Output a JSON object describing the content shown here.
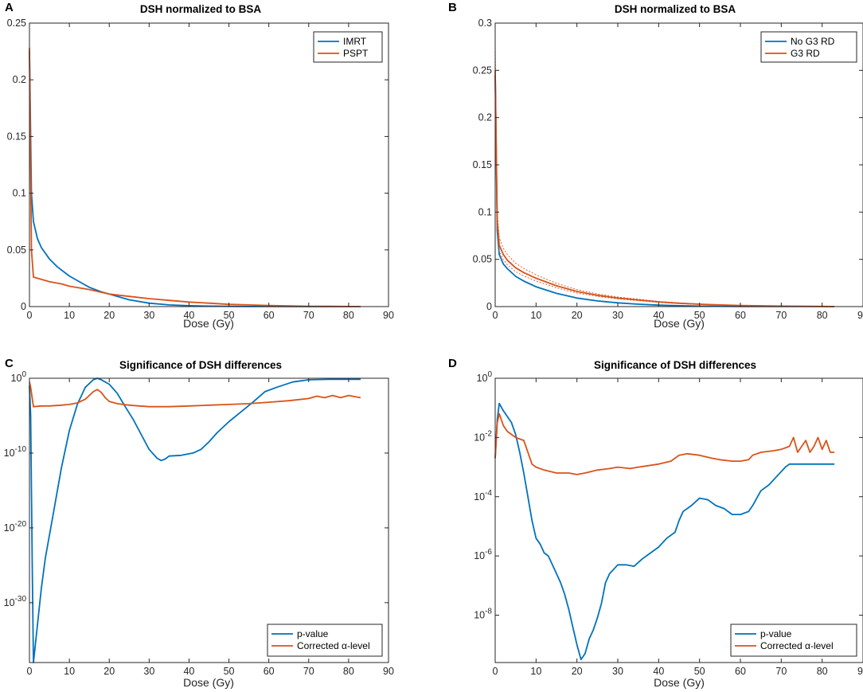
{
  "colors": {
    "blue": "#0072BD",
    "red": "#D95319",
    "axis": "#262626"
  },
  "chart_data": [
    {
      "panel": "A",
      "type": "line",
      "title": "DSH normalized to BSA",
      "xlabel": "Dose (Gy)",
      "ylabel": "",
      "xlim": [
        0,
        90
      ],
      "ylim": [
        0,
        0.25
      ],
      "yscale": "linear",
      "xticks": [
        0,
        10,
        20,
        30,
        40,
        50,
        60,
        70,
        80,
        90
      ],
      "yticks": [
        0,
        0.05,
        0.1,
        0.15,
        0.2,
        0.25
      ],
      "ytick_labels": [
        "0",
        "0.05",
        "0.1",
        "0.15",
        "0.2",
        "0.25"
      ],
      "legend_position": "top-right",
      "series": [
        {
          "name": "IMRT",
          "color": "blue",
          "x": [
            0,
            0.5,
            1,
            2,
            3,
            5,
            7,
            10,
            13,
            15,
            18,
            20,
            25,
            30,
            35,
            40,
            45,
            50,
            55,
            60,
            70,
            80,
            83
          ],
          "y": [
            0.225,
            0.1,
            0.075,
            0.06,
            0.052,
            0.042,
            0.035,
            0.027,
            0.021,
            0.017,
            0.013,
            0.011,
            0.006,
            0.003,
            0.0015,
            0.0008,
            0.0004,
            0.0002,
            0.0001,
            5e-05,
            2e-05,
            1e-05,
            0
          ]
        },
        {
          "name": "PSPT",
          "color": "red",
          "x": [
            0,
            0.5,
            1,
            2,
            5,
            8,
            10,
            15,
            20,
            25,
            30,
            35,
            40,
            45,
            50,
            55,
            60,
            65,
            70,
            75,
            80,
            83
          ],
          "y": [
            0.228,
            0.05,
            0.026,
            0.025,
            0.022,
            0.02,
            0.018,
            0.015,
            0.011,
            0.009,
            0.007,
            0.0055,
            0.004,
            0.003,
            0.002,
            0.0015,
            0.001,
            0.0006,
            0.0003,
            0.0002,
            0.0001,
            0
          ]
        }
      ]
    },
    {
      "panel": "B",
      "type": "line",
      "title": "DSH normalized to BSA",
      "xlabel": "Dose (Gy)",
      "ylabel": "",
      "xlim": [
        0,
        90
      ],
      "ylim": [
        0,
        0.3
      ],
      "yscale": "linear",
      "xticks": [
        0,
        10,
        20,
        30,
        40,
        50,
        60,
        70,
        80,
        90
      ],
      "yticks": [
        0,
        0.05,
        0.1,
        0.15,
        0.2,
        0.25,
        0.3
      ],
      "ytick_labels": [
        "0",
        "0.05",
        "0.1",
        "0.15",
        "0.2",
        "0.25",
        "0.3"
      ],
      "legend_position": "top-right",
      "series": [
        {
          "name": "No G3 RD",
          "color": "blue",
          "x": [
            0,
            0.5,
            1,
            2,
            3,
            5,
            7,
            10,
            15,
            20,
            25,
            30,
            35,
            40,
            45,
            50,
            55,
            60,
            70,
            80,
            83
          ],
          "y": [
            0.245,
            0.08,
            0.055,
            0.045,
            0.04,
            0.032,
            0.027,
            0.021,
            0.014,
            0.009,
            0.006,
            0.004,
            0.0025,
            0.0015,
            0.0009,
            0.0005,
            0.0003,
            0.0002,
            0.0001,
            5e-05,
            0
          ]
        },
        {
          "name": "G3 RD",
          "color": "red",
          "x": [
            0,
            0.5,
            1,
            2,
            3,
            5,
            7,
            10,
            15,
            20,
            25,
            30,
            35,
            40,
            45,
            50,
            55,
            60,
            70,
            80,
            83
          ],
          "y": [
            0.25,
            0.09,
            0.065,
            0.055,
            0.049,
            0.041,
            0.036,
            0.03,
            0.022,
            0.016,
            0.012,
            0.009,
            0.007,
            0.005,
            0.0035,
            0.0025,
            0.0018,
            0.0012,
            0.0005,
            0.0002,
            0
          ]
        }
      ]
    },
    {
      "panel": "C",
      "type": "line",
      "title": "Significance of DSH differences",
      "xlabel": "Dose (Gy)",
      "ylabel": "",
      "xlim": [
        0,
        90
      ],
      "ylim": [
        -38,
        0
      ],
      "yscale": "log",
      "xticks": [
        0,
        10,
        20,
        30,
        40,
        50,
        60,
        70,
        80,
        90
      ],
      "yticks": [
        0,
        -10,
        -20,
        -30
      ],
      "ytick_labels": [
        "10",
        "10",
        "10",
        "10"
      ],
      "ytick_exponents": [
        "0",
        "-10",
        "-20",
        "-30"
      ],
      "legend_position": "bottom-right",
      "series": [
        {
          "name": "p-value",
          "color": "blue",
          "log10_y": true,
          "x": [
            0,
            0.3,
            0.7,
            1,
            2,
            3,
            4,
            6,
            8,
            10,
            12,
            14,
            16,
            17,
            18,
            20,
            22,
            24,
            26,
            28,
            30,
            32,
            33,
            34,
            35,
            38,
            41,
            43,
            45,
            47,
            50,
            53,
            56,
            59,
            62,
            66,
            70,
            75,
            80,
            83
          ],
          "y": [
            -1,
            -5,
            -25,
            -39,
            -33,
            -28,
            -24,
            -18,
            -12,
            -7,
            -3.5,
            -1.2,
            -0.2,
            0,
            -0.2,
            -0.8,
            -2,
            -3.8,
            -5.5,
            -7.5,
            -9.5,
            -10.7,
            -11,
            -10.8,
            -10.4,
            -10.3,
            -10,
            -9.5,
            -8.5,
            -7.3,
            -5.8,
            -4.5,
            -3.2,
            -1.8,
            -1.2,
            -0.5,
            -0.2,
            -0.15,
            -0.15,
            -0.15
          ]
        },
        {
          "name": "Corrected α-level",
          "color": "red",
          "log10_y": true,
          "x": [
            0,
            0.3,
            1,
            3,
            5,
            8,
            10,
            12,
            14,
            15,
            16,
            17,
            18,
            19,
            20,
            22,
            25,
            30,
            35,
            40,
            45,
            50,
            55,
            60,
            65,
            70,
            72,
            74,
            76,
            78,
            80,
            82,
            83
          ],
          "y": [
            -0.5,
            -1.2,
            -3.8,
            -3.7,
            -3.7,
            -3.6,
            -3.5,
            -3.3,
            -2.8,
            -2.3,
            -1.8,
            -1.5,
            -1.9,
            -2.6,
            -3.1,
            -3.4,
            -3.6,
            -3.8,
            -3.8,
            -3.7,
            -3.6,
            -3.5,
            -3.4,
            -3.2,
            -3.0,
            -2.7,
            -2.4,
            -2.6,
            -2.3,
            -2.6,
            -2.3,
            -2.5,
            -2.6
          ]
        }
      ]
    },
    {
      "panel": "D",
      "type": "line",
      "title": "Significance of DSH differences",
      "xlabel": "Dose (Gy)",
      "ylabel": "",
      "xlim": [
        0,
        90
      ],
      "ylim": [
        -9.6,
        0
      ],
      "yscale": "log",
      "xticks": [
        0,
        10,
        20,
        30,
        40,
        50,
        60,
        70,
        80,
        90
      ],
      "yticks": [
        0,
        -2,
        -4,
        -6,
        -8
      ],
      "ytick_labels": [
        "10",
        "10",
        "10",
        "10",
        "10"
      ],
      "ytick_exponents": [
        "0",
        "-2",
        "-4",
        "-6",
        "-8"
      ],
      "legend_position": "bottom-right",
      "series": [
        {
          "name": "p-value",
          "color": "blue",
          "log10_y": true,
          "x": [
            0,
            0.5,
            1,
            2,
            3,
            4,
            5,
            6,
            7,
            8,
            9,
            10,
            11,
            12,
            13,
            14,
            15,
            16,
            17,
            18,
            19,
            20,
            21,
            22,
            23,
            24,
            25,
            26,
            27,
            28,
            30,
            32,
            34,
            36,
            38,
            40,
            42,
            44,
            45,
            46,
            48,
            50,
            52,
            54,
            56,
            58,
            60,
            62,
            63,
            65,
            67,
            69,
            71,
            72,
            75,
            80,
            83
          ],
          "y": [
            -2.7,
            -1.4,
            -0.85,
            -1.1,
            -1.3,
            -1.5,
            -1.9,
            -2.5,
            -3.2,
            -4.0,
            -4.8,
            -5.4,
            -5.6,
            -5.9,
            -6.0,
            -6.3,
            -6.6,
            -6.9,
            -7.3,
            -7.8,
            -8.4,
            -9.0,
            -9.5,
            -9.3,
            -8.8,
            -8.5,
            -8.1,
            -7.6,
            -6.9,
            -6.6,
            -6.3,
            -6.3,
            -6.35,
            -6.1,
            -5.9,
            -5.7,
            -5.4,
            -5.2,
            -4.8,
            -4.5,
            -4.3,
            -4.05,
            -4.1,
            -4.3,
            -4.4,
            -4.6,
            -4.6,
            -4.5,
            -4.3,
            -3.8,
            -3.6,
            -3.3,
            -3.0,
            -2.9,
            -2.9,
            -2.9,
            -2.9
          ]
        },
        {
          "name": "Corrected α-level",
          "color": "red",
          "log10_y": true,
          "x": [
            0,
            0.5,
            1,
            2,
            3,
            5,
            7,
            8,
            9,
            10,
            12,
            15,
            18,
            20,
            22,
            25,
            28,
            30,
            33,
            35,
            40,
            43,
            45,
            47,
            50,
            53,
            55,
            58,
            60,
            62,
            63,
            65,
            68,
            70,
            72,
            73,
            74,
            75,
            76,
            77,
            78,
            79,
            80,
            81,
            82,
            83
          ],
          "y": [
            -2.7,
            -1.5,
            -1.2,
            -1.6,
            -1.8,
            -2.0,
            -2.1,
            -2.5,
            -2.9,
            -3.0,
            -3.1,
            -3.2,
            -3.2,
            -3.25,
            -3.2,
            -3.1,
            -3.05,
            -3.0,
            -3.05,
            -3.0,
            -2.9,
            -2.8,
            -2.6,
            -2.55,
            -2.6,
            -2.7,
            -2.75,
            -2.8,
            -2.8,
            -2.75,
            -2.6,
            -2.5,
            -2.45,
            -2.4,
            -2.3,
            -2.0,
            -2.5,
            -2.3,
            -2.1,
            -2.5,
            -2.3,
            -2.0,
            -2.4,
            -2.1,
            -2.5,
            -2.5
          ]
        }
      ]
    }
  ]
}
